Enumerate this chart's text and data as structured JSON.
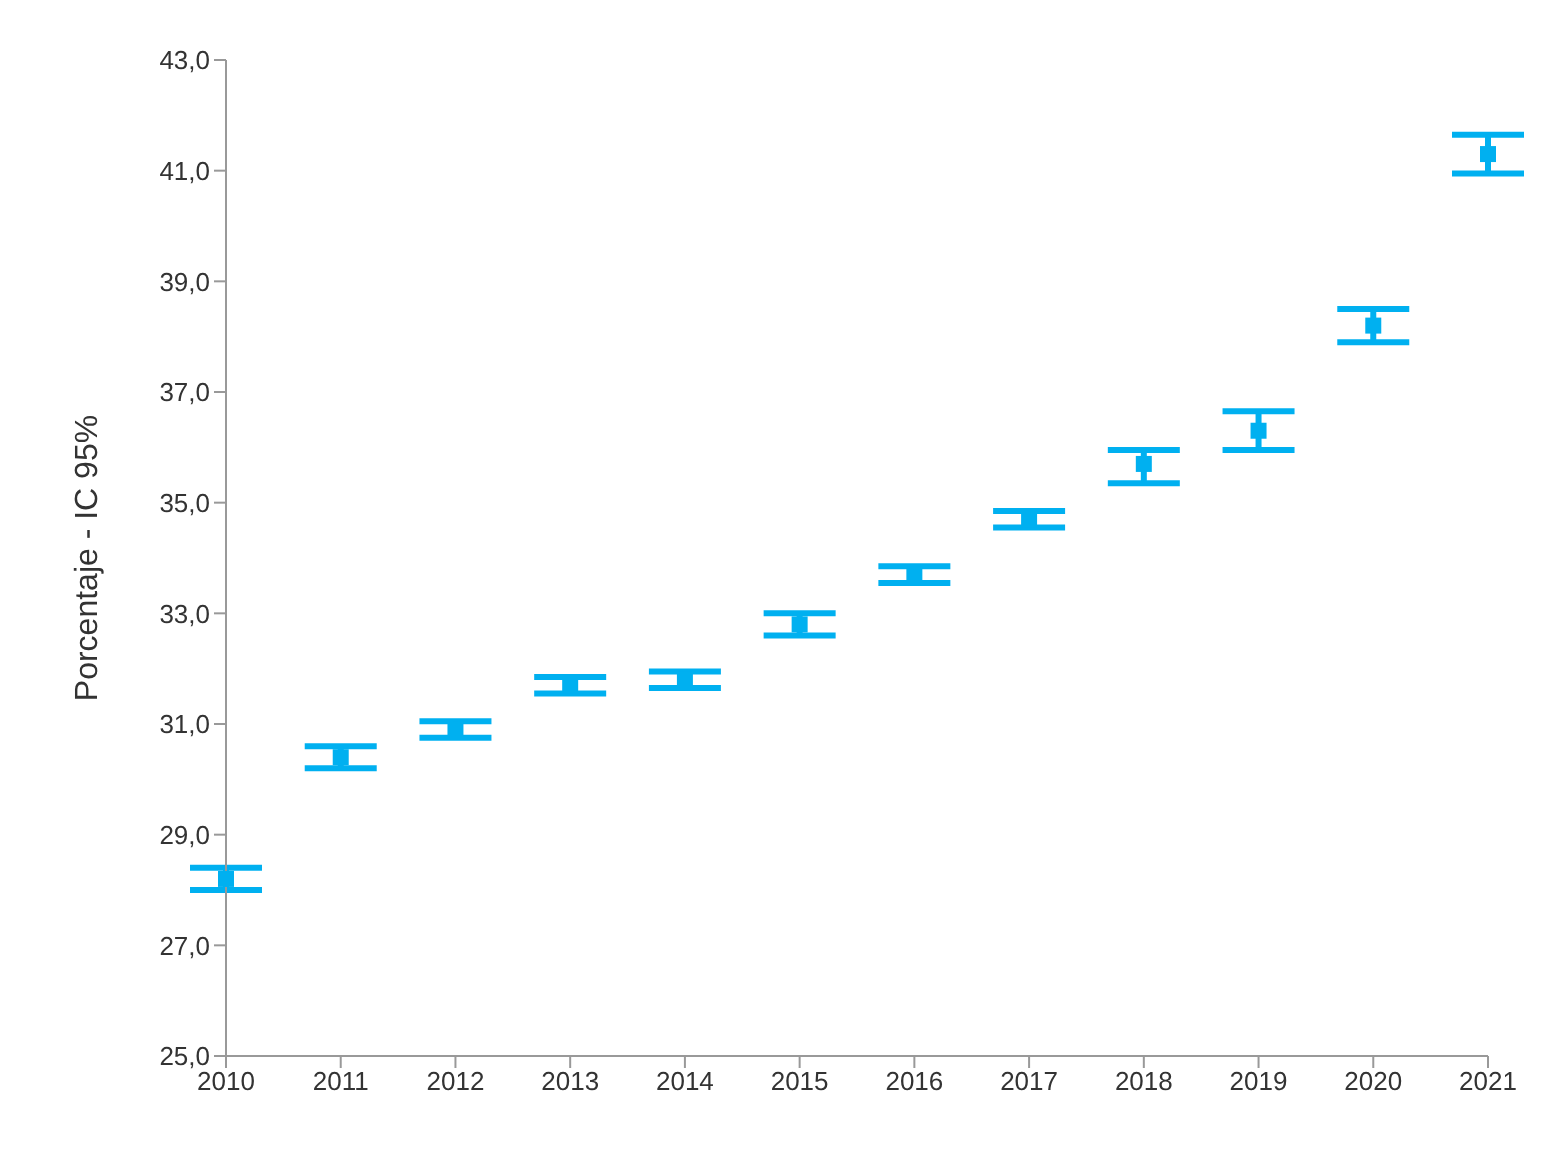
{
  "chart_data": {
    "type": "scatter",
    "ylabel": "Porcentaje - IC 95%",
    "categories": [
      "2010",
      "2011",
      "2012",
      "2013",
      "2014",
      "2015",
      "2016",
      "2017",
      "2018",
      "2019",
      "2020",
      "2021"
    ],
    "series": [
      {
        "color": "#00b0f0",
        "values": [
          28.2,
          30.4,
          30.9,
          31.7,
          31.8,
          32.8,
          33.7,
          34.7,
          35.7,
          36.3,
          38.2,
          41.3
        ],
        "errors": [
          0.2,
          0.2,
          0.15,
          0.15,
          0.15,
          0.2,
          0.15,
          0.15,
          [
            35.35,
            35.95
          ],
          0.35,
          0.3,
          0.35
        ]
      }
    ],
    "ylim": [
      25,
      43
    ],
    "yticks": [
      {
        "value": 25,
        "label": "25,0"
      },
      {
        "value": 27,
        "label": "27,0"
      },
      {
        "value": 29,
        "label": "29,0"
      },
      {
        "value": 31,
        "label": "31,0"
      },
      {
        "value": 33,
        "label": "33,0"
      },
      {
        "value": 35,
        "label": "35,0"
      },
      {
        "value": 37,
        "label": "37,0"
      },
      {
        "value": 39,
        "label": "39,0"
      },
      {
        "value": 41,
        "label": "41,0"
      },
      {
        "value": 43,
        "label": "43,0"
      }
    ],
    "marker": "square",
    "grid": false,
    "legend": false
  }
}
